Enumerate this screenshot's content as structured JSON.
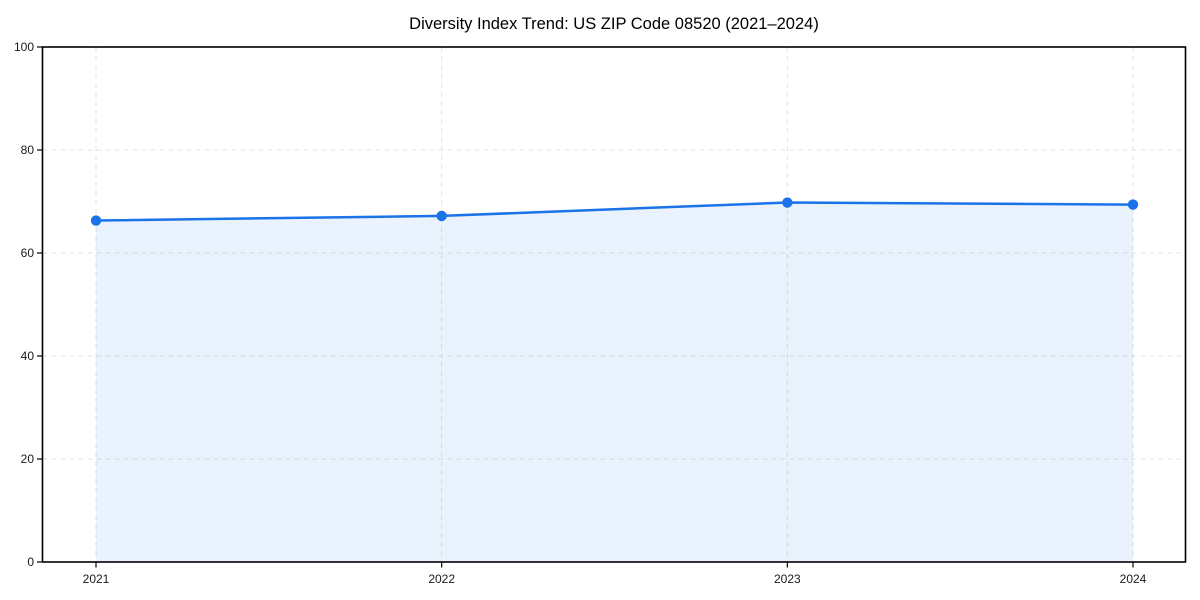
{
  "chart_data": {
    "type": "line",
    "title": "Diversity Index Trend: US ZIP Code 08520 (2021–2024)",
    "categories": [
      "2021",
      "2022",
      "2023",
      "2024"
    ],
    "series": [
      {
        "name": "Diversity Index",
        "values": [
          66.3,
          67.2,
          69.8,
          69.4
        ]
      }
    ],
    "xlabel": "",
    "ylabel": "",
    "ylim": [
      0,
      100
    ],
    "yticks": [
      0,
      20,
      40,
      60,
      80,
      100
    ],
    "grid": true,
    "grid_style": "dashed",
    "legend": false,
    "marker": "circle",
    "area_fill": true,
    "colors": {
      "line": "#1a73e8",
      "marker": "#1a73e8",
      "area": "rgba(26,115,232,0.09)",
      "gridline": "#e3e3e3",
      "spine": "#000000",
      "tick_text": "#1a1a1a"
    }
  }
}
